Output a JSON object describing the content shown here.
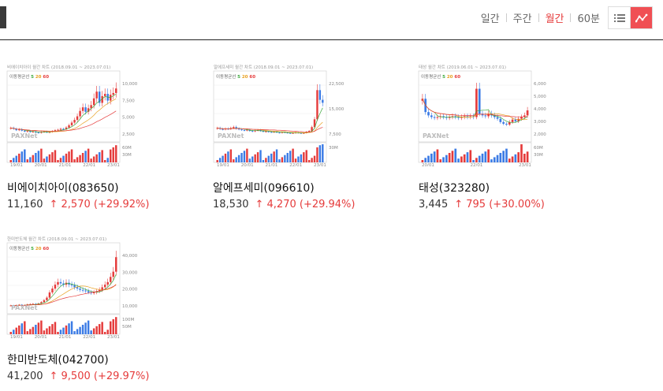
{
  "periods": [
    {
      "label": "일간",
      "active": false
    },
    {
      "label": "주간",
      "active": false
    },
    {
      "label": "월간",
      "active": true
    },
    {
      "label": "60분",
      "active": false
    }
  ],
  "icons": {
    "list": "list-view-icon",
    "chart": "chart-view-icon"
  },
  "colors": {
    "up": "#e53b3b",
    "down": "#3b7be5",
    "accent": "#f04f54"
  },
  "stocks": [
    {
      "name": "비에이치아이(083650)",
      "price": "11,160",
      "change": "↑ 2,570 (+29.92%)",
      "chart": {
        "title": "비에이치아이 월간 차트 (2018.09.01 ~ 2023.07.01)",
        "legend_label": "이동평균선",
        "ma": [
          "5",
          "20",
          "60"
        ],
        "y_ticks": [
          "10,000",
          "7,500",
          "5,000",
          "2,500"
        ],
        "vol_ticks": [
          "60M",
          "30M"
        ],
        "x_ticks": [
          "19/01",
          "20/01",
          "21/01",
          "22/01",
          "23/01"
        ],
        "watermark": "PAXNet",
        "closes": [
          2.4,
          2.2,
          1.9,
          2.1,
          1.8,
          1.6,
          1.7,
          1.5,
          1.6,
          1.4,
          1.3,
          1.5,
          1.6,
          1.4,
          1.5,
          1.7,
          1.9,
          2.0,
          2.2,
          2.1,
          2.5,
          3.0,
          3.6,
          4.2,
          5.0,
          6.2,
          7.0,
          6.0,
          6.8,
          7.5,
          9.0,
          10.5,
          8.0,
          9.5,
          10.0,
          8.5,
          9.8,
          10.2,
          11.2
        ],
        "ymax": 13
      }
    },
    {
      "name": "알에프세미(096610)",
      "price": "18,530",
      "change": "↑ 4,270 (+29.94%)",
      "chart": {
        "title": "알에프세미 월간 차트 (2018.09.01 ~ 2023.07.01)",
        "legend_label": "이동평균선",
        "ma": [
          "5",
          "20",
          "60"
        ],
        "y_ticks": [
          "22,500",
          "15,000",
          "7,500"
        ],
        "vol_ticks": [
          "30M"
        ],
        "x_ticks": [
          "19/01",
          "20/01",
          "21/01",
          "22/01",
          "23/01"
        ],
        "watermark": "PAXNet",
        "closes": [
          5.5,
          5.0,
          4.8,
          5.2,
          5.0,
          5.5,
          6.0,
          5.2,
          4.8,
          4.5,
          4.2,
          4.6,
          4.0,
          3.8,
          4.2,
          4.5,
          4.0,
          3.6,
          3.8,
          3.5,
          3.4,
          3.6,
          3.2,
          3.0,
          3.4,
          3.2,
          3.0,
          2.8,
          3.0,
          3.2,
          3.0,
          2.8,
          3.0,
          3.5,
          4.0,
          6.0,
          10.0,
          25.0,
          20.0,
          18.5
        ],
        "ymax": 30
      }
    },
    {
      "name": "태성(323280)",
      "price": "3,445",
      "change": "↑ 795 (+30.00%)",
      "chart": {
        "title": "태성 월간 차트 (2019.06.01 ~ 2023.07.01)",
        "legend_label": "이동평균선",
        "ma": [
          "5",
          "20",
          "60"
        ],
        "y_ticks": [
          "6,000",
          "5,000",
          "4,000",
          "3,000",
          "2,000"
        ],
        "vol_ticks": [
          "60M",
          "30M"
        ],
        "x_ticks": [
          "20/01",
          "22/01",
          "23/01"
        ],
        "watermark": "PAXNet",
        "closes": [
          4.8,
          3.2,
          2.8,
          2.6,
          2.5,
          2.6,
          2.7,
          2.6,
          2.5,
          2.6,
          2.7,
          2.6,
          2.5,
          2.6,
          2.7,
          2.6,
          2.7,
          2.6,
          6.0,
          3.0,
          2.8,
          2.7,
          3.0,
          2.8,
          2.6,
          2.4,
          2.0,
          1.8,
          1.7,
          2.0,
          2.3,
          2.1,
          2.4,
          2.6,
          2.8,
          3.4
        ],
        "ymax": 7
      }
    },
    {
      "name": "한미반도체(042700)",
      "price": "41,200",
      "change": "↑ 9,500 (+29.97%)",
      "chart": {
        "title": "한미반도체 월간 차트 (2018.09.01 ~ 2023.07.01)",
        "legend_label": "이동평균선",
        "ma": [
          "5",
          "20",
          "60"
        ],
        "y_ticks": [
          "40,000",
          "30,000",
          "20,000",
          "10,000"
        ],
        "vol_ticks": [
          "100M",
          "50M"
        ],
        "x_ticks": [
          "19/01",
          "20/01",
          "21/01",
          "22/01",
          "23/01"
        ],
        "watermark": "PAXNet",
        "closes": [
          4.0,
          3.8,
          4.2,
          4.5,
          4.0,
          4.2,
          4.8,
          5.0,
          5.2,
          4.8,
          5.5,
          6.5,
          8.0,
          10.0,
          14.0,
          17.0,
          20.0,
          22.0,
          21.0,
          20.0,
          21.5,
          20.0,
          19.5,
          18.0,
          17.0,
          16.0,
          15.5,
          15.0,
          14.0,
          13.5,
          14.0,
          15.0,
          16.0,
          18.0,
          20.0,
          22.0,
          26.0,
          30.0,
          41.2
        ],
        "ymax": 45
      }
    }
  ]
}
